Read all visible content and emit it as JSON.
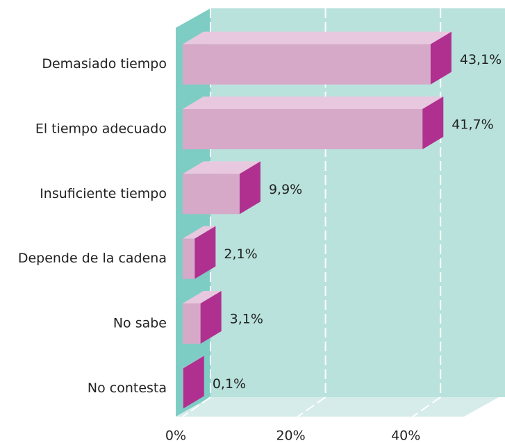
{
  "chart_data": {
    "type": "bar3d",
    "orientation": "horizontal",
    "categories": [
      "Demasiado tiempo",
      "El tiempo adecuado",
      "Insuficiente tiempo",
      "Depende de la cadena",
      "No sabe",
      "No contesta"
    ],
    "values": [
      43.1,
      41.7,
      9.9,
      2.1,
      3.1,
      0.1
    ],
    "value_labels": [
      "43,1%",
      "41,7%",
      "9,9%",
      "2,1%",
      "3,1%",
      "0,1%"
    ],
    "color": "#d6a9c9",
    "xlim": [
      0,
      50
    ],
    "xticks": [
      {
        "value": 0,
        "label": "0%"
      },
      {
        "value": 20,
        "label": "20%"
      },
      {
        "value": 40,
        "label": "40%"
      }
    ],
    "grid": true
  }
}
